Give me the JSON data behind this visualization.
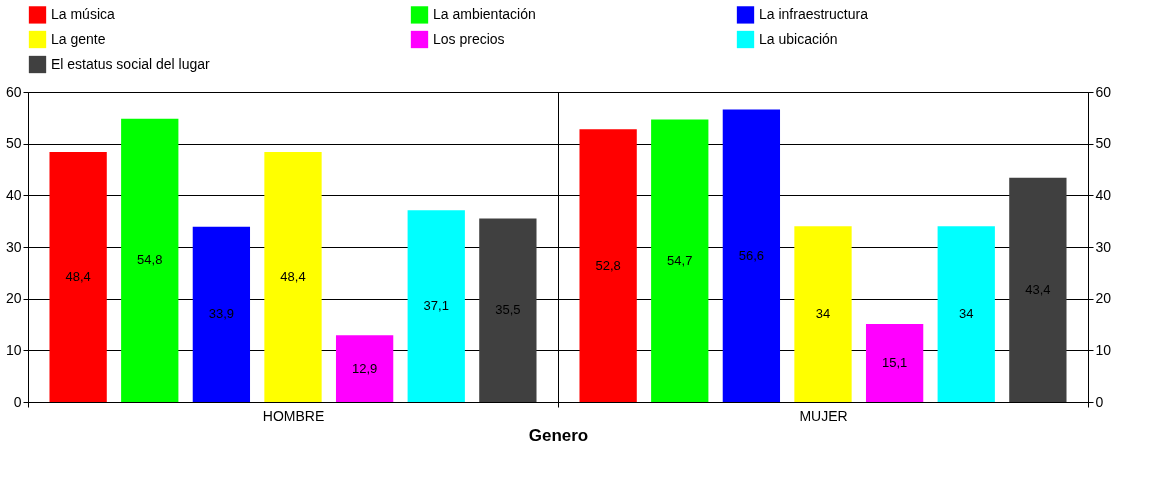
{
  "chart_data": {
    "type": "bar",
    "xlabel": "Genero",
    "categories": [
      "HOMBRE",
      "MUJER"
    ],
    "series": [
      {
        "name": "La música",
        "color": "#ff0000",
        "values": [
          48.4,
          52.8
        ],
        "value_labels": [
          "48,4",
          "52,8"
        ]
      },
      {
        "name": "La ambientación",
        "color": "#00ff00",
        "values": [
          54.8,
          54.7
        ],
        "value_labels": [
          "54,8",
          "54,7"
        ]
      },
      {
        "name": "La infraestructura",
        "color": "#0000ff",
        "values": [
          33.9,
          56.6
        ],
        "value_labels": [
          "33,9",
          "56,6"
        ]
      },
      {
        "name": "La gente",
        "color": "#ffff00",
        "values": [
          48.4,
          34
        ],
        "value_labels": [
          "48,4",
          "34"
        ]
      },
      {
        "name": "Los precios",
        "color": "#ff00ff",
        "values": [
          12.9,
          15.1
        ],
        "value_labels": [
          "12,9",
          "15,1"
        ]
      },
      {
        "name": "La ubicación",
        "color": "#00ffff",
        "values": [
          37.1,
          34
        ],
        "value_labels": [
          "37,1",
          "34"
        ]
      },
      {
        "name": "El estatus social del lugar",
        "color": "#404040",
        "values": [
          35.5,
          43.4
        ],
        "value_labels": [
          "35,5",
          "43,4"
        ]
      }
    ],
    "ylim": [
      0,
      60
    ],
    "yticks": [
      0,
      10,
      20,
      30,
      40,
      50,
      60
    ],
    "y2lim": [
      0,
      60
    ],
    "y2ticks": [
      0,
      10,
      20,
      30,
      40,
      50,
      60
    ],
    "grid": "y",
    "legend": "top"
  }
}
